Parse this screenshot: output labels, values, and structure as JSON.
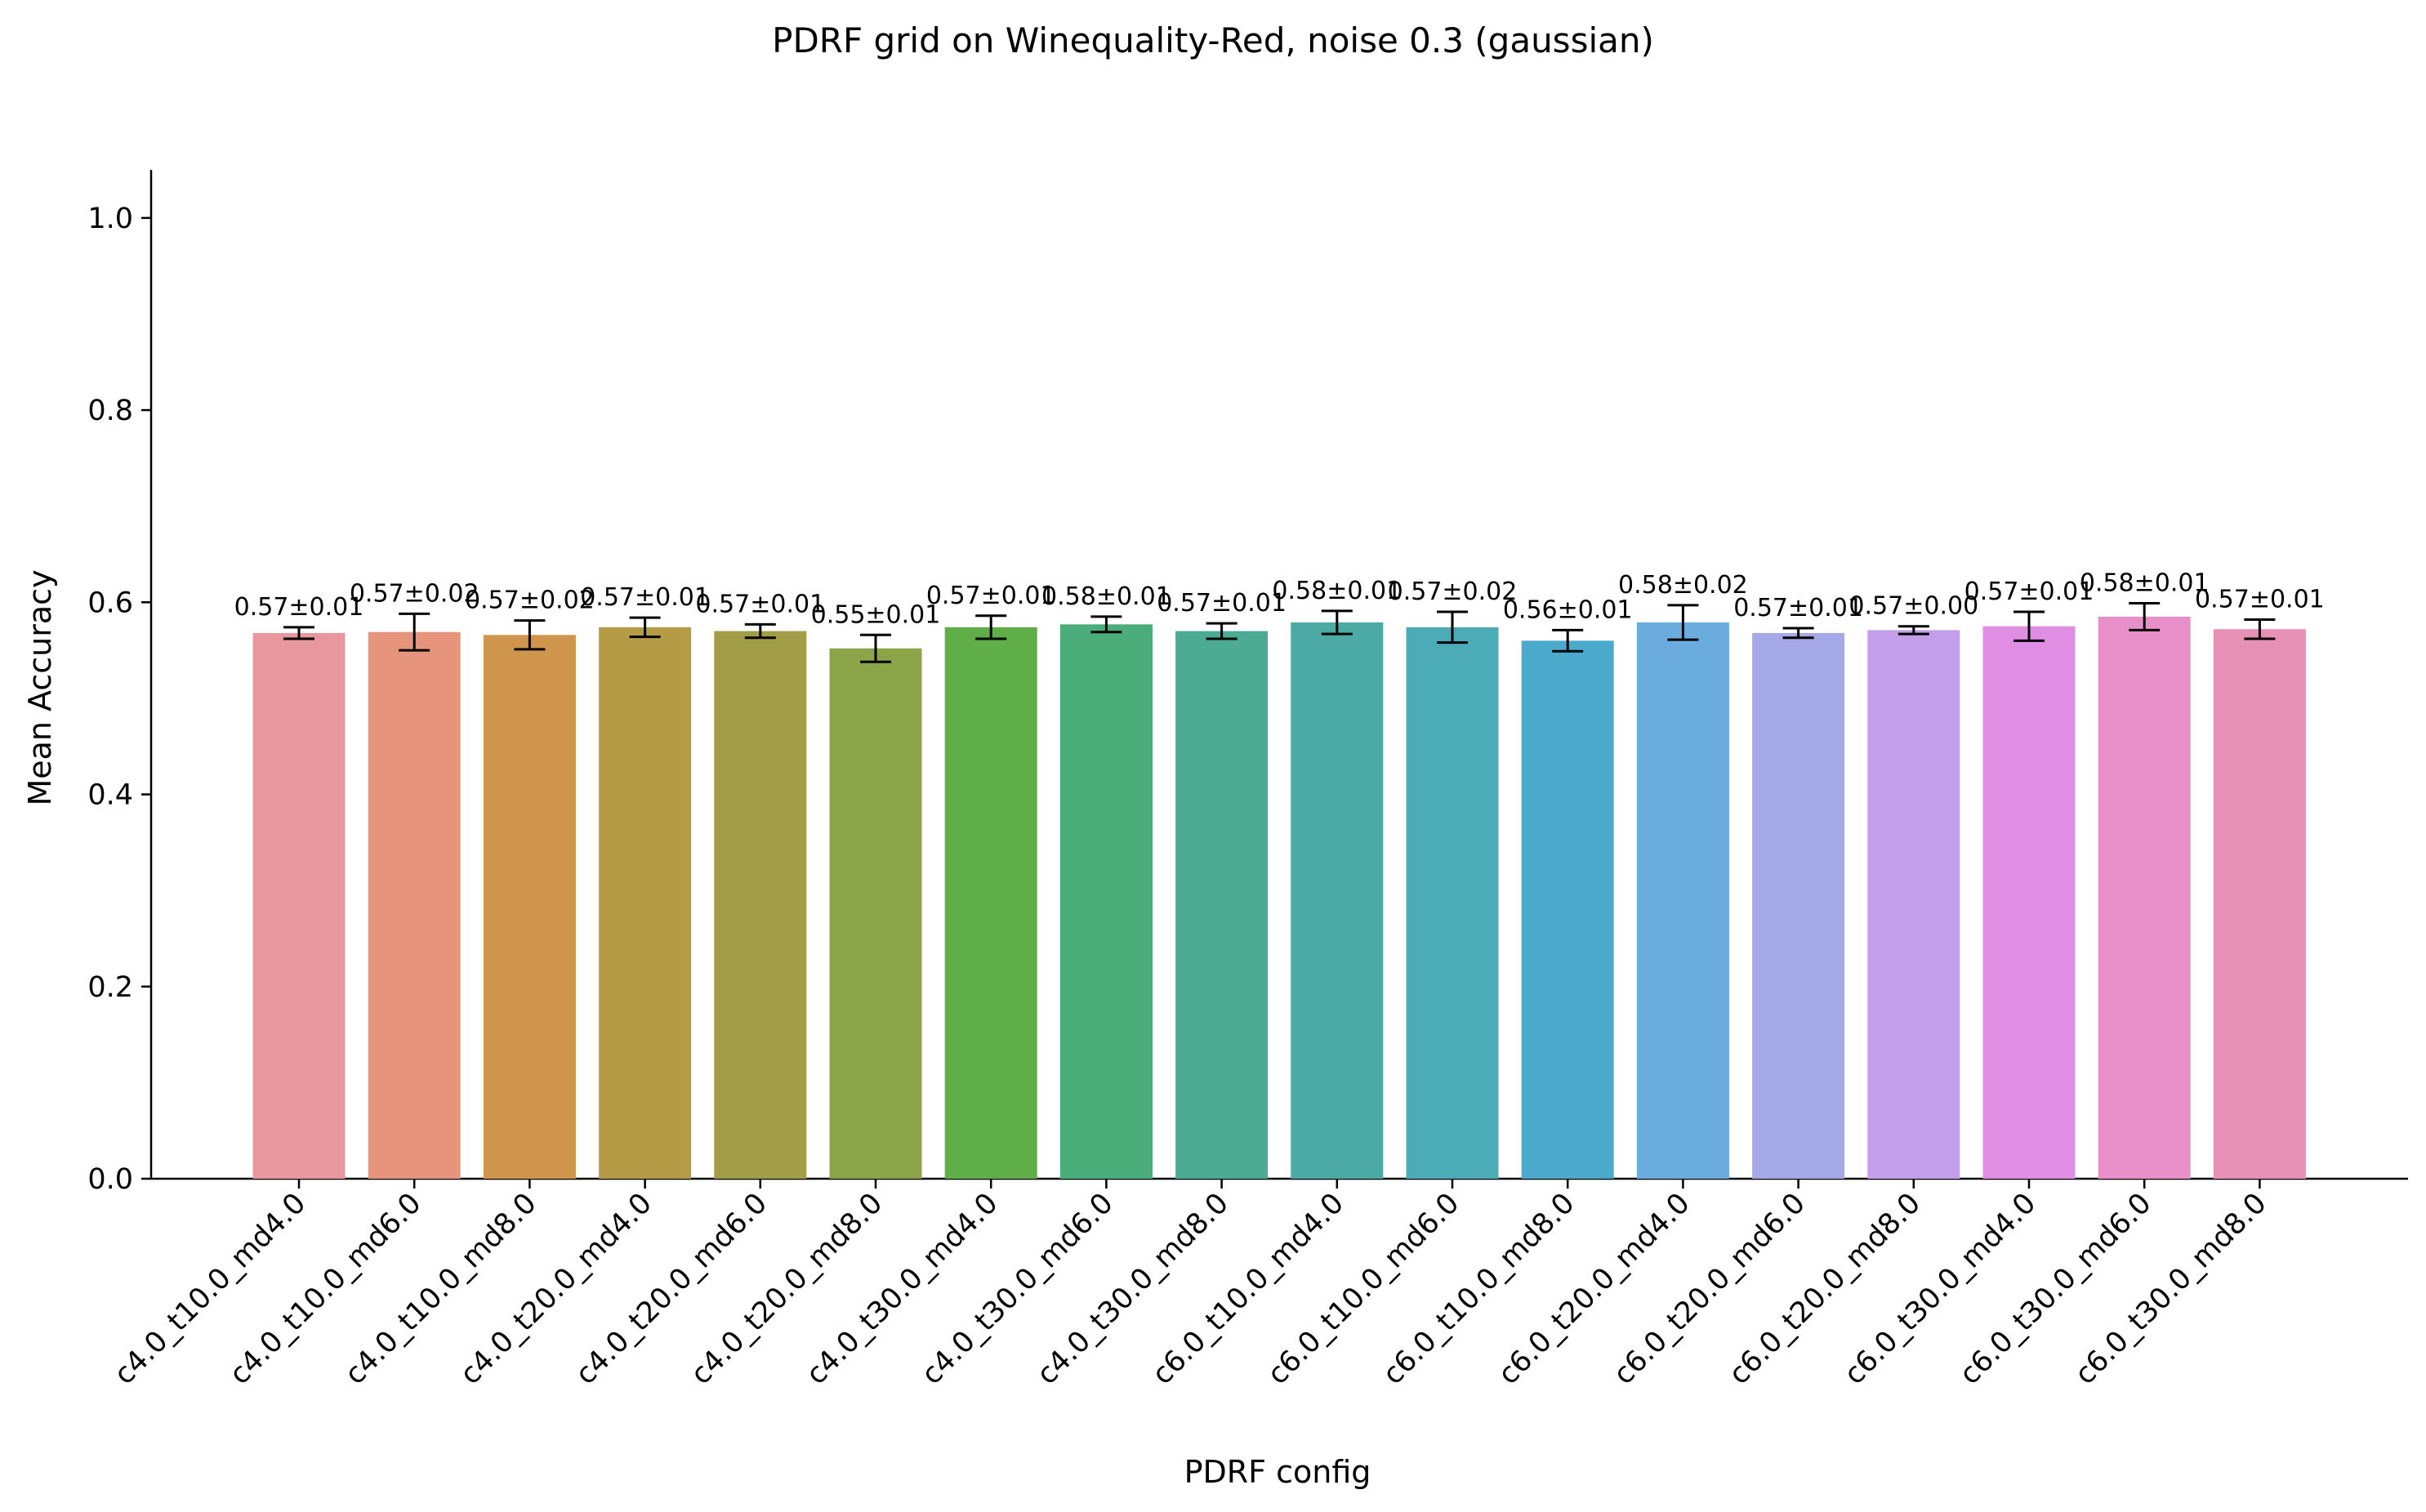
{
  "chart_data": {
    "type": "bar",
    "title": "PDRF grid on Winequality-Red, noise 0.3 (gaussian)",
    "xlabel": "PDRF config",
    "ylabel": "Mean Accuracy",
    "ylim": [
      0,
      1.05
    ],
    "yticks": [
      "0.0",
      "0.2",
      "0.4",
      "0.6",
      "0.8",
      "1.0"
    ],
    "grid": false,
    "legend": "none",
    "categories": [
      "c4.0_t10.0_md4.0",
      "c4.0_t10.0_md6.0",
      "c4.0_t10.0_md8.0",
      "c4.0_t20.0_md4.0",
      "c4.0_t20.0_md6.0",
      "c4.0_t20.0_md8.0",
      "c4.0_t30.0_md4.0",
      "c4.0_t30.0_md6.0",
      "c4.0_t30.0_md8.0",
      "c6.0_t10.0_md4.0",
      "c6.0_t10.0_md6.0",
      "c6.0_t10.0_md8.0",
      "c6.0_t20.0_md4.0",
      "c6.0_t20.0_md6.0",
      "c6.0_t20.0_md8.0",
      "c6.0_t30.0_md4.0",
      "c6.0_t30.0_md6.0",
      "c6.0_t30.0_md8.0"
    ],
    "values": [
      0.568,
      0.569,
      0.566,
      0.574,
      0.57,
      0.552,
      0.574,
      0.577,
      0.57,
      0.579,
      0.574,
      0.56,
      0.579,
      0.568,
      0.571,
      0.575,
      0.585,
      0.572
    ],
    "errors": [
      0.006,
      0.019,
      0.015,
      0.01,
      0.007,
      0.014,
      0.012,
      0.008,
      0.008,
      0.012,
      0.016,
      0.011,
      0.018,
      0.005,
      0.004,
      0.015,
      0.014,
      0.01
    ],
    "data_labels": [
      "0.57±0.01",
      "0.57±0.02",
      "0.57±0.02",
      "0.57±0.01",
      "0.57±0.01",
      "0.55±0.01",
      "0.57±0.01",
      "0.58±0.01",
      "0.57±0.01",
      "0.58±0.01",
      "0.57±0.02",
      "0.56±0.01",
      "0.58±0.02",
      "0.57±0.01",
      "0.57±0.00",
      "0.57±0.01",
      "0.58±0.01",
      "0.57±0.01"
    ],
    "colors": [
      "#e8979f",
      "#e6947c",
      "#cf954c",
      "#b69b47",
      "#a19e47",
      "#8ba447",
      "#5fae48",
      "#4bad79",
      "#4bab93",
      "#4baba4",
      "#4bacb8",
      "#4baacb",
      "#6aacdd",
      "#a5a9e8",
      "#c39eeb",
      "#df8ee4",
      "#e88ec8",
      "#e891b6"
    ]
  }
}
